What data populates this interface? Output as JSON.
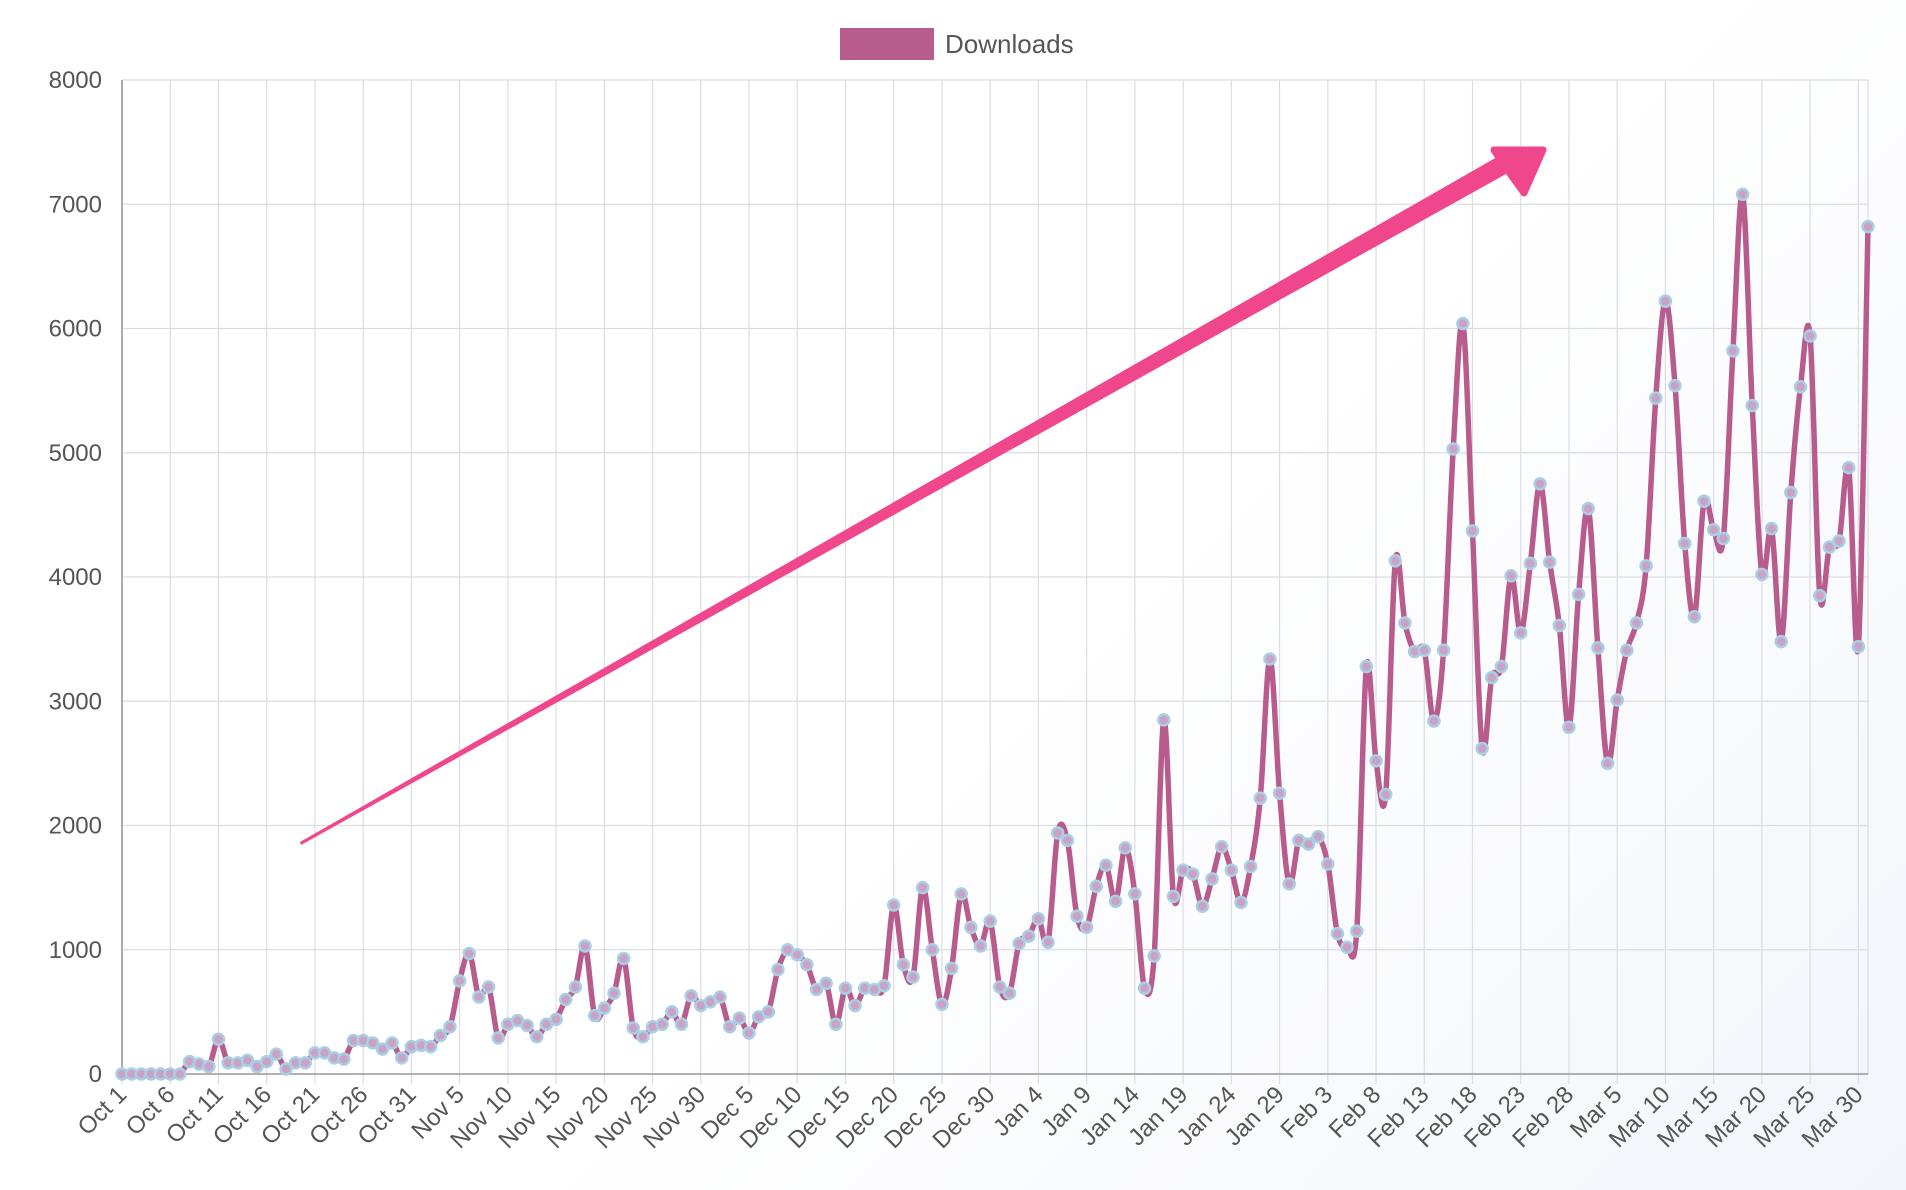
{
  "legend": {
    "label": "Downloads",
    "color": "#b75c8c"
  },
  "annotation": {
    "type": "trend-arrow",
    "color": "#f0468c"
  },
  "chart_data": {
    "type": "line",
    "legend_position": "top",
    "grid": true,
    "ylim": [
      0,
      8000
    ],
    "y_ticks": [
      0,
      1000,
      2000,
      3000,
      4000,
      5000,
      6000,
      7000,
      8000
    ],
    "x_tick_labels": [
      "Oct 1",
      "Oct 6",
      "Oct 11",
      "Oct 16",
      "Oct 21",
      "Oct 26",
      "Oct 31",
      "Nov 5",
      "Nov 10",
      "Nov 15",
      "Nov 20",
      "Nov 25",
      "Nov 30",
      "Dec 5",
      "Dec 10",
      "Dec 15",
      "Dec 20",
      "Dec 25",
      "Dec 30",
      "Jan 4",
      "Jan 9",
      "Jan 14",
      "Jan 19",
      "Jan 24",
      "Jan 29",
      "Feb 3",
      "Feb 8",
      "Feb 13",
      "Feb 18",
      "Feb 23",
      "Feb 28",
      "Mar 5",
      "Mar 10",
      "Mar 15",
      "Mar 20",
      "Mar 25",
      "Mar 30"
    ],
    "x_start": "Oct 1",
    "x_end": "Mar 31",
    "series": [
      {
        "name": "Downloads",
        "color": "#b75c8c",
        "point_color": "#a9cfe6",
        "values": [
          0,
          0,
          0,
          0,
          0,
          0,
          0,
          100,
          80,
          60,
          280,
          90,
          90,
          110,
          60,
          100,
          160,
          40,
          90,
          90,
          170,
          170,
          130,
          120,
          270,
          270,
          250,
          200,
          250,
          130,
          220,
          230,
          220,
          310,
          380,
          750,
          970,
          620,
          700,
          290,
          400,
          430,
          390,
          300,
          400,
          440,
          600,
          700,
          1030,
          470,
          530,
          650,
          930,
          370,
          300,
          380,
          400,
          500,
          400,
          630,
          550,
          580,
          620,
          380,
          450,
          330,
          460,
          500,
          840,
          1000,
          960,
          880,
          680,
          730,
          400,
          690,
          550,
          690,
          680,
          710,
          1360,
          880,
          780,
          1500,
          1000,
          560,
          850,
          1450,
          1180,
          1030,
          1230,
          700,
          650,
          1050,
          1110,
          1250,
          1060,
          1940,
          1880,
          1270,
          1180,
          1510,
          1680,
          1390,
          1820,
          1450,
          690,
          950,
          2850,
          1430,
          1640,
          1610,
          1350,
          1570,
          1830,
          1640,
          1380,
          1670,
          2220,
          3340,
          2260,
          1530,
          1880,
          1850,
          1910,
          1690,
          1130,
          1020,
          1150,
          3280,
          2520,
          2250,
          4130,
          3630,
          3400,
          3410,
          2840,
          3410,
          5030,
          6040,
          4370,
          2620,
          3190,
          3280,
          4010,
          3550,
          4110,
          4750,
          4120,
          3610,
          2790,
          3860,
          4550,
          3430,
          2500,
          3010,
          3410,
          3630,
          4090,
          5440,
          6220,
          5540,
          4270,
          3680,
          4610,
          4380,
          4310,
          5820,
          7080,
          5380,
          4020,
          4390,
          3480,
          4680,
          5530,
          5940,
          3850,
          4240,
          4290,
          4880,
          3440,
          6820
        ]
      }
    ]
  }
}
